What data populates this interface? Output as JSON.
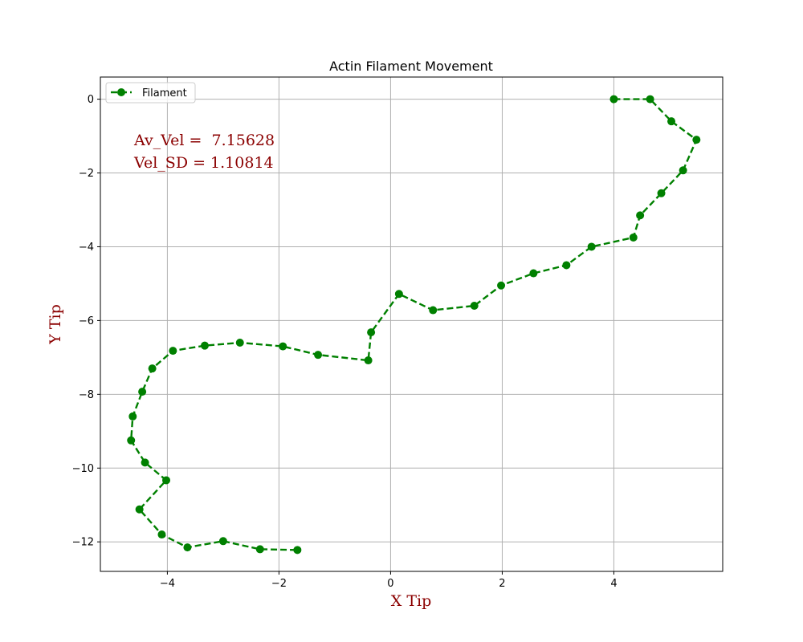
{
  "chart_data": {
    "type": "line",
    "title": "Actin Filament Movement",
    "xlabel": "X Tip",
    "ylabel": "Y Tip",
    "xlim": [
      -5.2,
      5.95
    ],
    "ylim": [
      -12.8,
      0.6
    ],
    "xticks": [
      -4,
      -2,
      0,
      2,
      4
    ],
    "yticks": [
      0,
      -2,
      -4,
      -6,
      -8,
      -10,
      -12
    ],
    "xtick_labels": [
      "−4",
      "−2",
      "0",
      "2",
      "4"
    ],
    "ytick_labels": [
      "0",
      "−2",
      "−4",
      "−6",
      "−8",
      "−10",
      "−12"
    ],
    "grid": true,
    "legend_position": "upper-left",
    "series": [
      {
        "name": "Filament",
        "color": "#008000",
        "style": "dashed-line-circle-markers",
        "x": [
          4.0,
          4.65,
          5.03,
          5.48,
          5.24,
          4.85,
          4.47,
          4.35,
          3.6,
          3.15,
          2.56,
          1.98,
          1.5,
          0.76,
          0.15,
          -0.35,
          -0.4,
          -1.3,
          -1.93,
          -2.7,
          -3.33,
          -3.9,
          -4.27,
          -4.45,
          -4.62,
          -4.65,
          -4.4,
          -4.02,
          -4.5,
          -4.1,
          -3.64,
          -3.0,
          -2.34,
          -1.67
        ],
        "y": [
          0.0,
          0.0,
          -0.6,
          -1.1,
          -1.93,
          -2.55,
          -3.15,
          -3.75,
          -4.0,
          -4.5,
          -4.72,
          -5.05,
          -5.6,
          -5.72,
          -5.28,
          -6.32,
          -7.08,
          -6.93,
          -6.7,
          -6.6,
          -6.68,
          -6.82,
          -7.3,
          -7.93,
          -8.6,
          -9.25,
          -9.85,
          -10.33,
          -11.12,
          -11.8,
          -12.15,
          -11.98,
          -12.2,
          -12.22
        ]
      }
    ],
    "annotations": [
      {
        "text": "Av_Vel =  7.15628",
        "color": "#8b0000"
      },
      {
        "text": "Vel_SD = 1.10814",
        "color": "#8b0000"
      }
    ],
    "label_color": "#8b0000"
  }
}
